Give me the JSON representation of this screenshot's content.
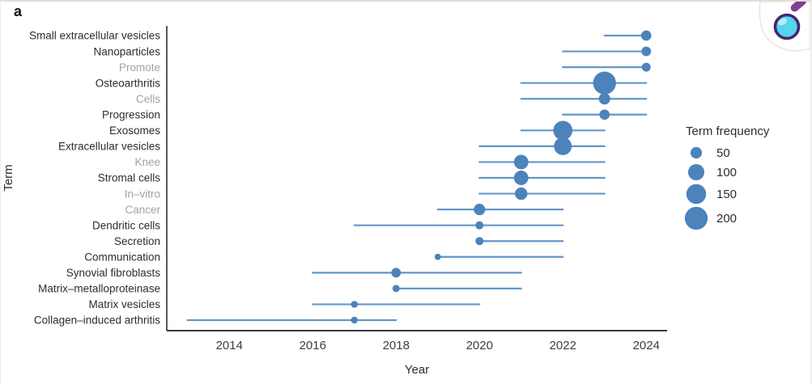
{
  "page": {
    "panel_label": "a",
    "background": "#ffffff"
  },
  "logo": {
    "name": "magnifier-logo",
    "bubble_fill": "#ffffff",
    "bubble_edge": "#e9e5e1",
    "lens_fill": "#55d6ee",
    "lens_ring": "#46276b",
    "lens_highlight": "rgba(255,255,255,0.55)",
    "handle_fill": "#803f93"
  },
  "chart_data": {
    "type": "scatter",
    "subtype": "trend-topics-bubble-timeline",
    "title": "",
    "xlabel": "Year",
    "ylabel": "Term",
    "xlim": [
      2012.5,
      2024.5
    ],
    "xticks": [
      "2014",
      "2016",
      "2018",
      "2020",
      "2022",
      "2024"
    ],
    "xtick_years": [
      2014,
      2016,
      2018,
      2020,
      2022,
      2024
    ],
    "grid": false,
    "legend": {
      "title": "Term frequency",
      "sizes": [
        50,
        100,
        150,
        200
      ],
      "position": "right"
    },
    "colors": {
      "line": "#6396c9",
      "bubble": "#4c83bb",
      "axis": "#3a3a3a",
      "tick_label": "#3d3d3d",
      "term_label": "#2d2d2d",
      "term_label_muted": "#a3a3a3"
    },
    "terms": [
      {
        "term": "Small extracellular vesicles",
        "start": 2023,
        "end": 2024,
        "peak": 2024,
        "freq": 40,
        "muted": false
      },
      {
        "term": "Nanoparticles",
        "start": 2022,
        "end": 2024,
        "peak": 2024,
        "freq": 35,
        "muted": false
      },
      {
        "term": "Promote",
        "start": 2022,
        "end": 2024,
        "peak": 2024,
        "freq": 30,
        "muted": true
      },
      {
        "term": "Osteoarthritis",
        "start": 2021,
        "end": 2024,
        "peak": 2023,
        "freq": 200,
        "muted": false
      },
      {
        "term": "Cells",
        "start": 2021,
        "end": 2024,
        "peak": 2023,
        "freq": 50,
        "muted": true
      },
      {
        "term": "Progression",
        "start": 2022,
        "end": 2024,
        "peak": 2023,
        "freq": 40,
        "muted": false
      },
      {
        "term": "Exosomes",
        "start": 2021,
        "end": 2023,
        "peak": 2022,
        "freq": 140,
        "muted": false
      },
      {
        "term": "Extracellular vesicles",
        "start": 2020,
        "end": 2023,
        "peak": 2022,
        "freq": 120,
        "muted": false
      },
      {
        "term": "Knee",
        "start": 2020,
        "end": 2023,
        "peak": 2021,
        "freq": 80,
        "muted": true
      },
      {
        "term": "Stromal cells",
        "start": 2020,
        "end": 2023,
        "peak": 2021,
        "freq": 80,
        "muted": false
      },
      {
        "term": "In–vitro",
        "start": 2020,
        "end": 2023,
        "peak": 2021,
        "freq": 60,
        "muted": true
      },
      {
        "term": "Cancer",
        "start": 2019,
        "end": 2022,
        "peak": 2020,
        "freq": 50,
        "muted": true
      },
      {
        "term": "Dendritic cells",
        "start": 2017,
        "end": 2022,
        "peak": 2020,
        "freq": 25,
        "muted": false
      },
      {
        "term": "Secretion",
        "start": 2020,
        "end": 2022,
        "peak": 2020,
        "freq": 25,
        "muted": false
      },
      {
        "term": "Communication",
        "start": 2019,
        "end": 2022,
        "peak": 2019,
        "freq": 15,
        "muted": false
      },
      {
        "term": "Synovial fibroblasts",
        "start": 2016,
        "end": 2021,
        "peak": 2018,
        "freq": 35,
        "muted": false
      },
      {
        "term": "Matrix–metalloproteinase",
        "start": 2018,
        "end": 2021,
        "peak": 2018,
        "freq": 20,
        "muted": false
      },
      {
        "term": "Matrix vesicles",
        "start": 2016,
        "end": 2020,
        "peak": 2017,
        "freq": 18,
        "muted": false
      },
      {
        "term": "Collagen–induced arthritis",
        "start": 2013,
        "end": 2018,
        "peak": 2017,
        "freq": 18,
        "muted": false
      }
    ]
  }
}
